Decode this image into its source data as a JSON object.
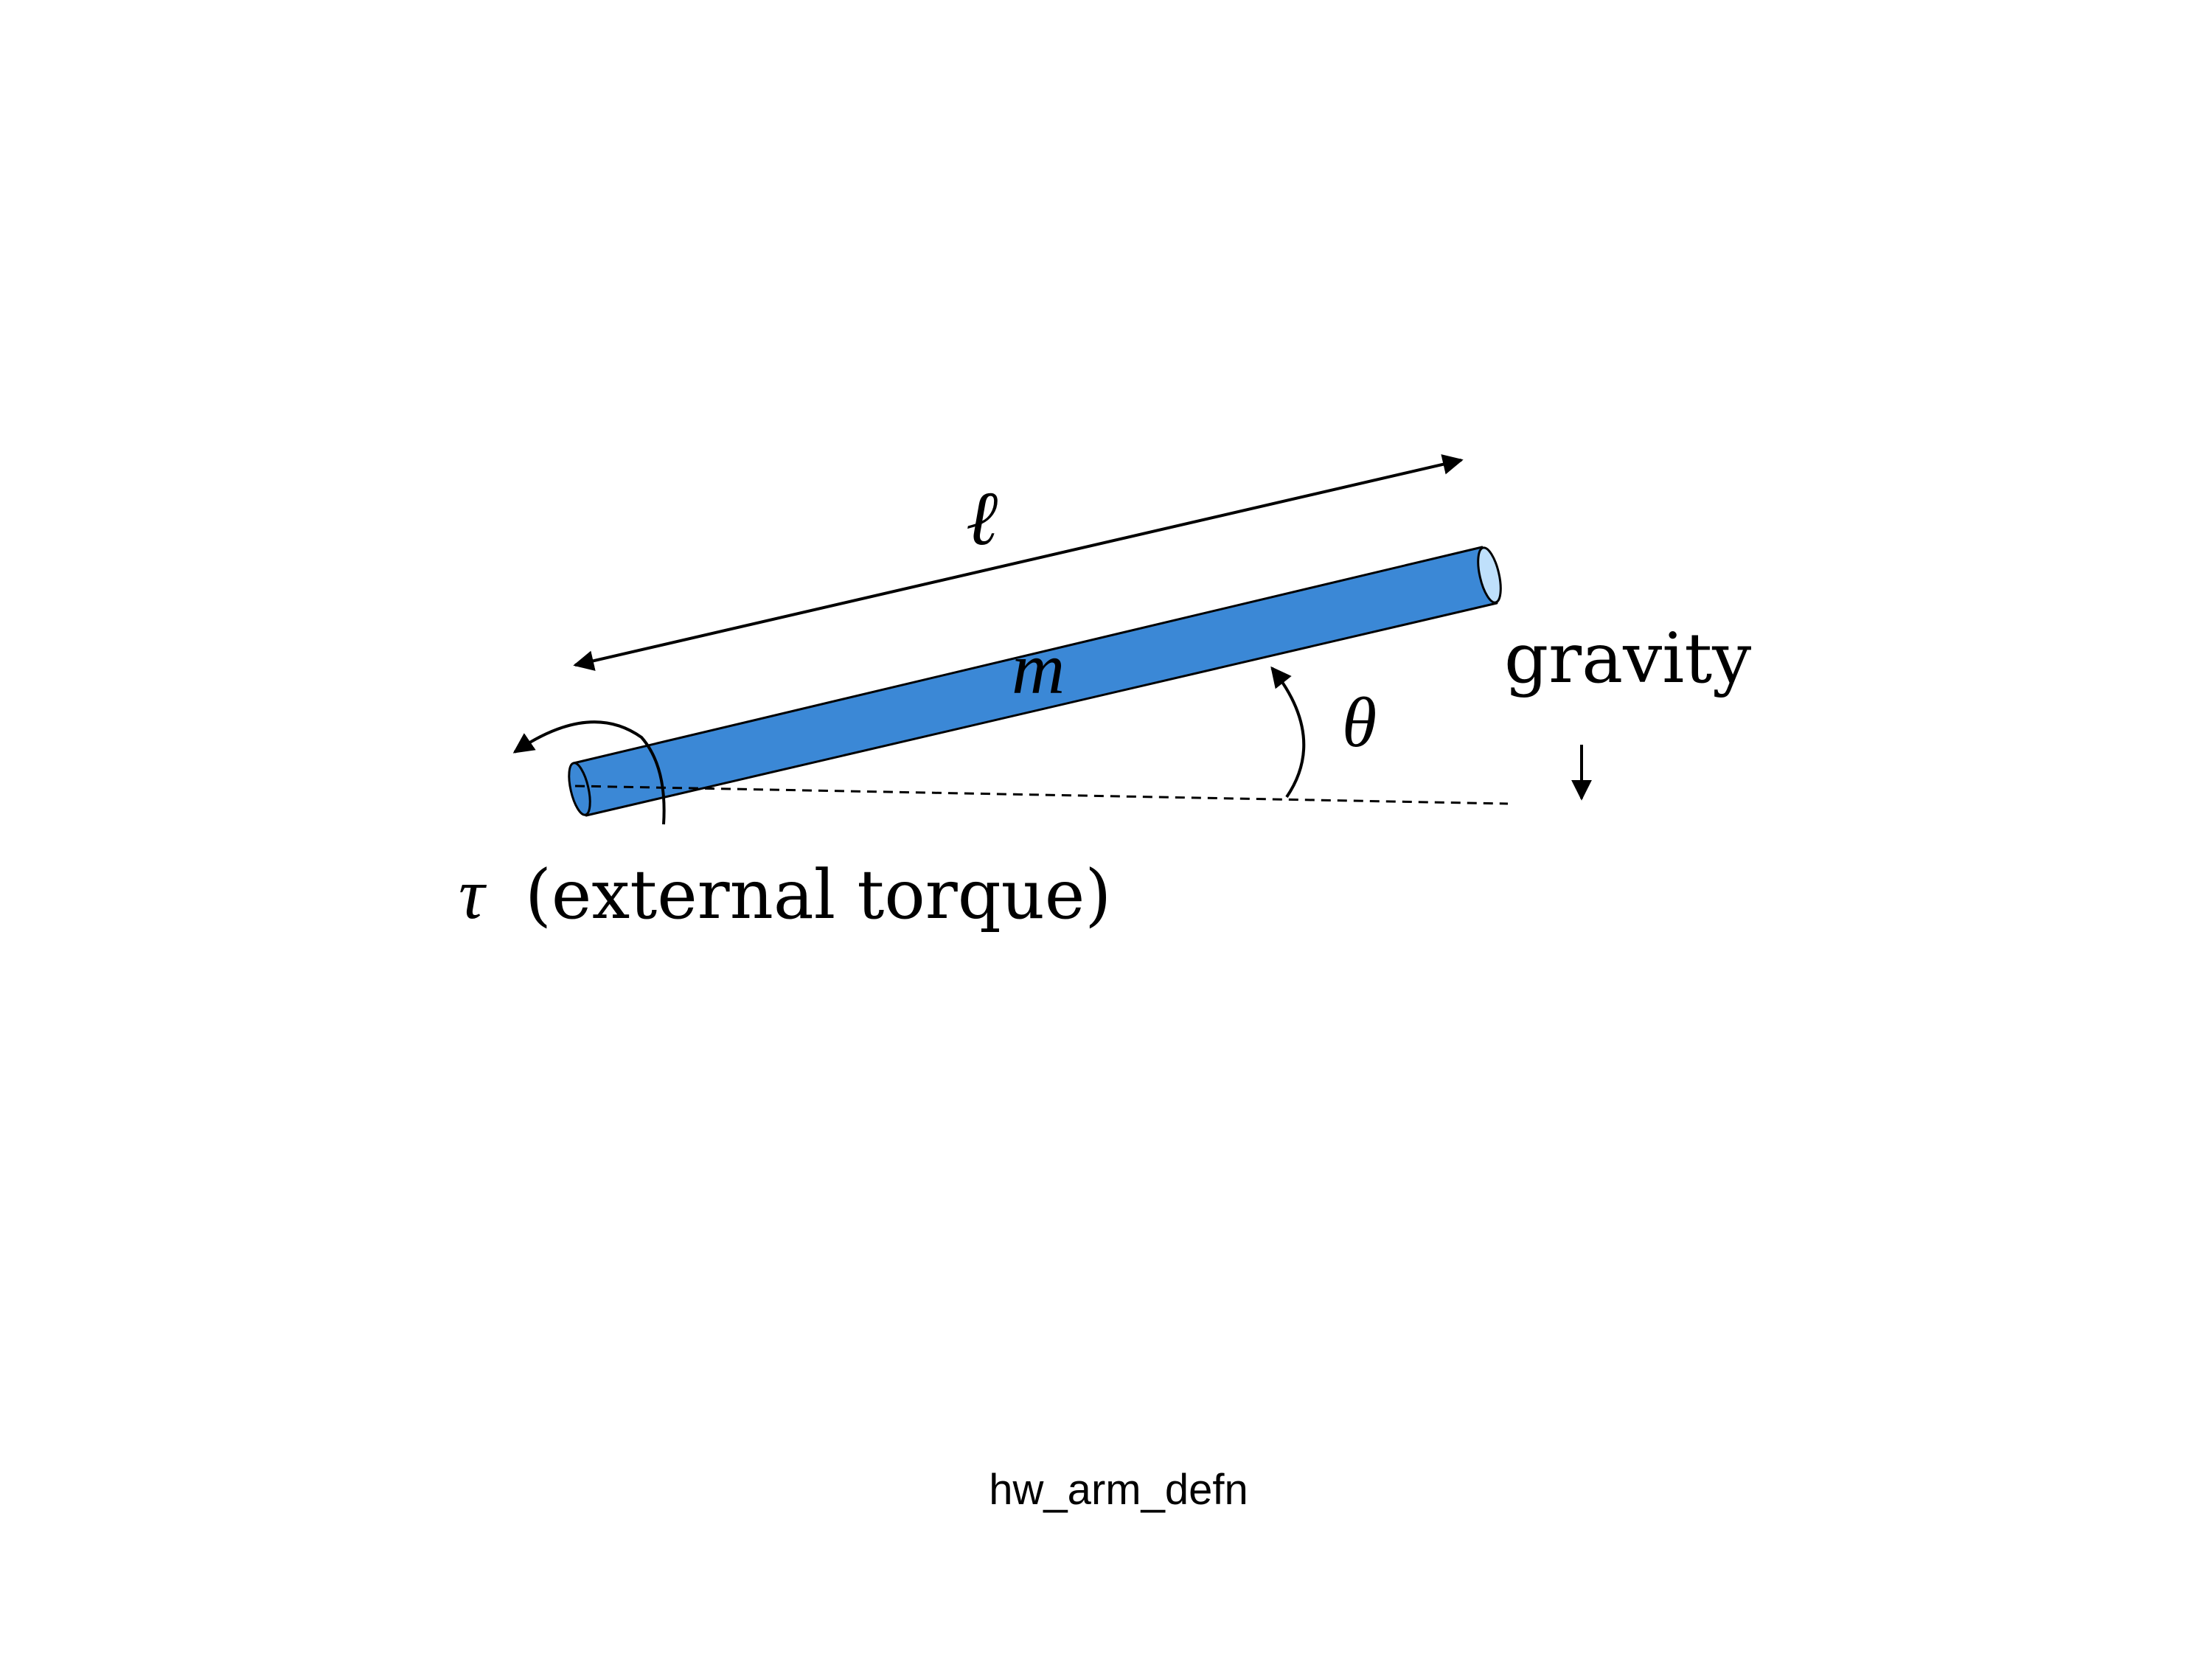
{
  "diagram": {
    "labels": {
      "length": "ℓ",
      "mass": "m",
      "angle": "θ",
      "gravity": "gravity",
      "torque_symbol": "τ",
      "torque_text": "(external torque)"
    },
    "caption": "hw_arm_defn",
    "colors": {
      "rod_fill": "#3b88d6",
      "stroke": "#000000"
    }
  }
}
